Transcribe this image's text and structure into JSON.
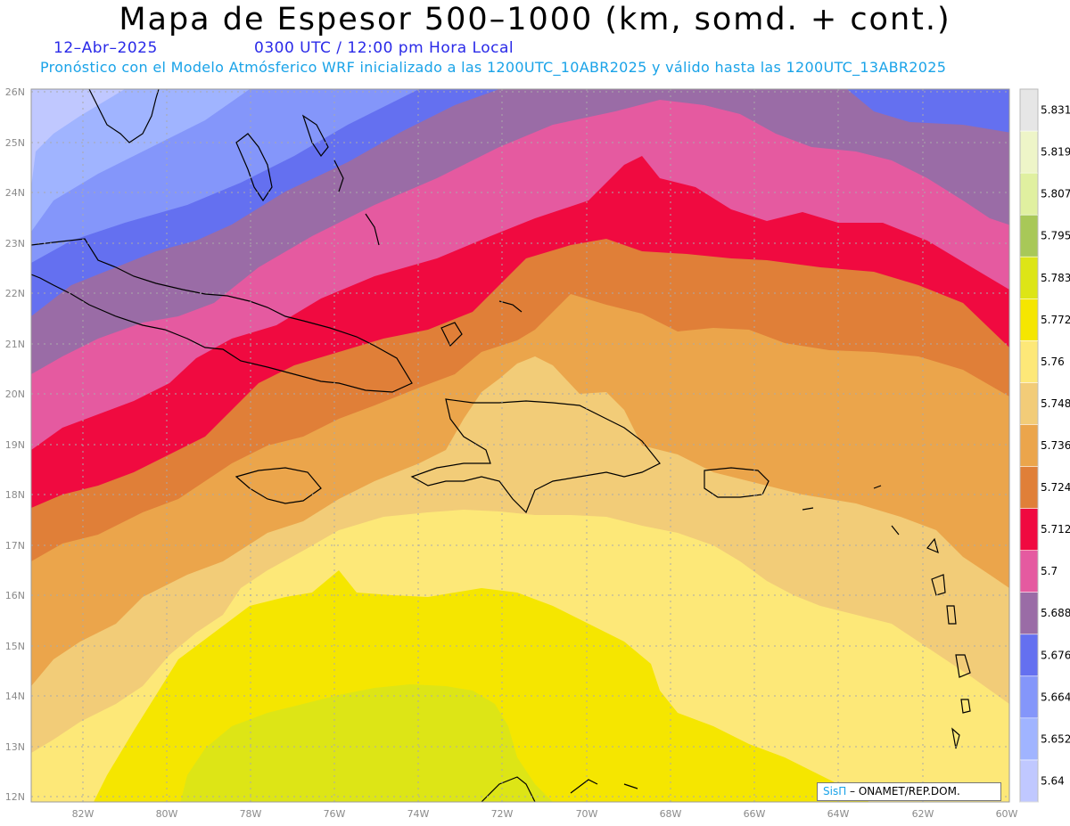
{
  "header": {
    "title": "Mapa de Espesor 500–1000 (km, somd. + cont.)",
    "date": "12–Abr–2025",
    "time": "0300 UTC / 12:00 pm Hora Local",
    "description": "Pronóstico con el Modelo Atmósferico WRF inicializado a las 1200UTC_10ABR2025 y válido hasta las  1200UTC_13ABR2025"
  },
  "lat_labels": [
    "26N",
    "25N",
    "24N",
    "23N",
    "22N",
    "21N",
    "20N",
    "19N",
    "18N",
    "17N",
    "16N",
    "15N",
    "14N",
    "13N",
    "12N"
  ],
  "lon_labels": [
    "82W",
    "80W",
    "78W",
    "76W",
    "74W",
    "72W",
    "70W",
    "68W",
    "66W",
    "64W",
    "62W",
    "60W"
  ],
  "colorbar": {
    "labels": [
      "5.831",
      "5.819",
      "5.807",
      "5.795",
      "5.783",
      "5.772",
      "5.76",
      "5.748",
      "5.736",
      "5.724",
      "5.712",
      "5.7",
      "5.688",
      "5.676",
      "5.664",
      "5.652",
      "5.64"
    ],
    "colors": [
      "#e6e6e6",
      "#eef5c8",
      "#e0f0a0",
      "#a8c858",
      "#dde516",
      "#f5e600",
      "#fde878",
      "#f2cc78",
      "#eba54b",
      "#e07f38",
      "#f00a40",
      "#e55aa0",
      "#9a6ca6",
      "#6470f0",
      "#8496fa",
      "#a0b4ff",
      "#c0c8ff"
    ]
  },
  "credit": {
    "brand": "SisΠ",
    "text": " – ONAMET/REP.DOM."
  }
}
